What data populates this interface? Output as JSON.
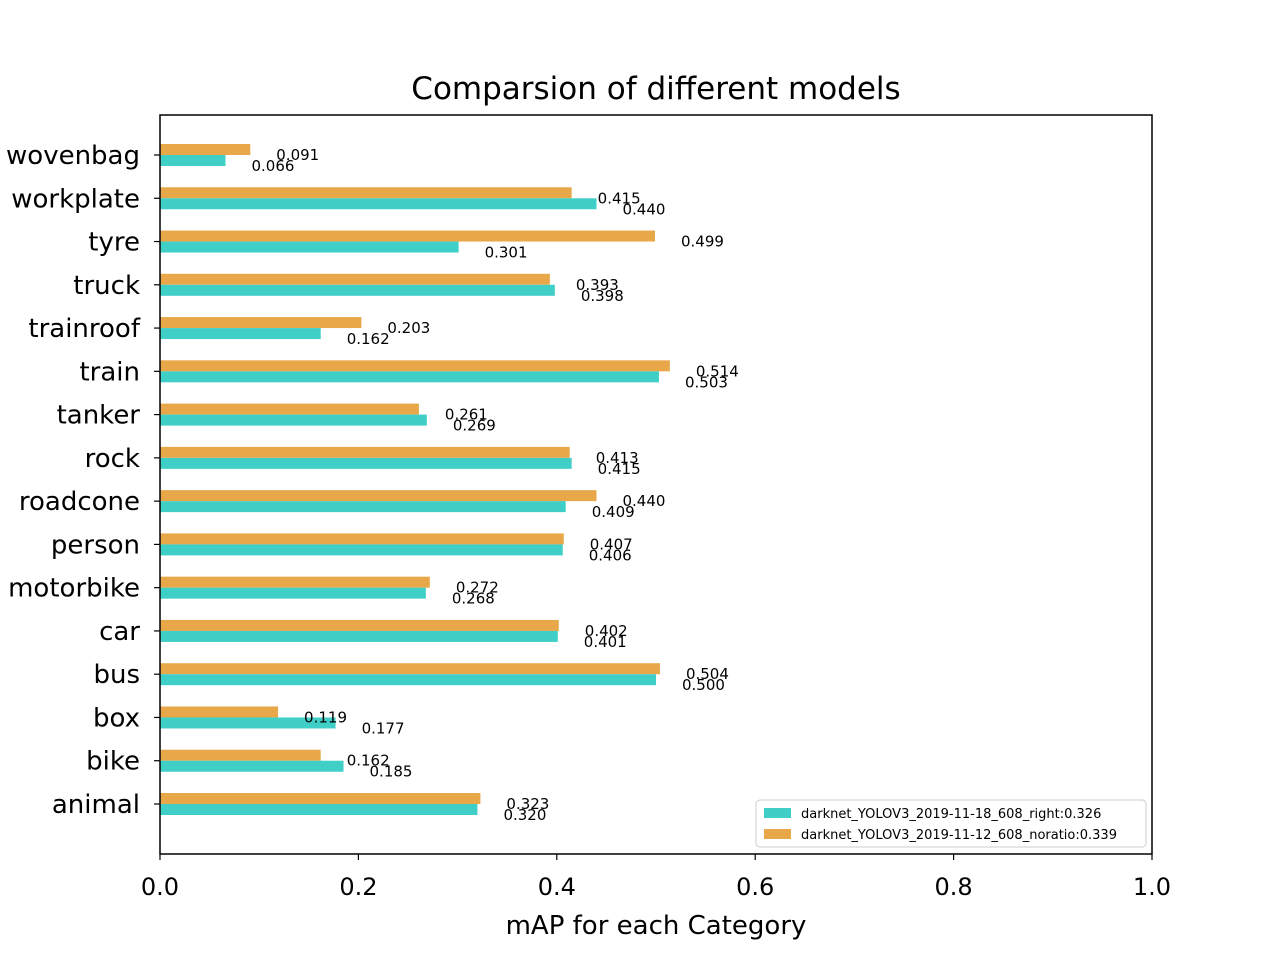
{
  "chart_data": {
    "type": "bar",
    "orientation": "horizontal",
    "title": "Comparsion of different models",
    "xlabel": "mAP for each Category",
    "ylabel": "",
    "xlim": [
      0,
      1.0
    ],
    "xticks": [
      "0.0",
      "0.2",
      "0.4",
      "0.6",
      "0.8",
      "1.0"
    ],
    "grid": false,
    "legend_position": "lower-right",
    "categories": [
      "animal",
      "bike",
      "box",
      "bus",
      "car",
      "motorbike",
      "person",
      "roadcone",
      "rock",
      "tanker",
      "train",
      "trainroof",
      "truck",
      "tyre",
      "workplate",
      "wovenbag"
    ],
    "series": [
      {
        "name": "darknet_YOLOV3_2019-11-18_608_right:0.326",
        "color": "#40cfc6",
        "values": [
          0.32,
          0.185,
          0.177,
          0.5,
          0.401,
          0.268,
          0.406,
          0.409,
          0.415,
          0.269,
          0.503,
          0.162,
          0.398,
          0.301,
          0.44,
          0.066
        ],
        "labels": [
          "0.320",
          "0.185",
          "0.177",
          "0.500",
          "0.401",
          "0.268",
          "0.406",
          "0.409",
          "0.415",
          "0.269",
          "0.503",
          "0.162",
          "0.398",
          "0.301",
          "0.440",
          "0.066"
        ]
      },
      {
        "name": "darknet_YOLOV3_2019-11-12_608_noratio:0.339",
        "color": "#e8a84a",
        "values": [
          0.323,
          0.162,
          0.119,
          0.504,
          0.402,
          0.272,
          0.407,
          0.44,
          0.413,
          0.261,
          0.514,
          0.203,
          0.393,
          0.499,
          0.415,
          0.091
        ],
        "labels": [
          "0.323",
          "0.162",
          "0.119",
          "0.504",
          "0.402",
          "0.272",
          "0.407",
          "0.440",
          "0.413",
          "0.261",
          "0.514",
          "0.203",
          "0.393",
          "0.499",
          "0.415",
          "0.091"
        ]
      }
    ]
  }
}
